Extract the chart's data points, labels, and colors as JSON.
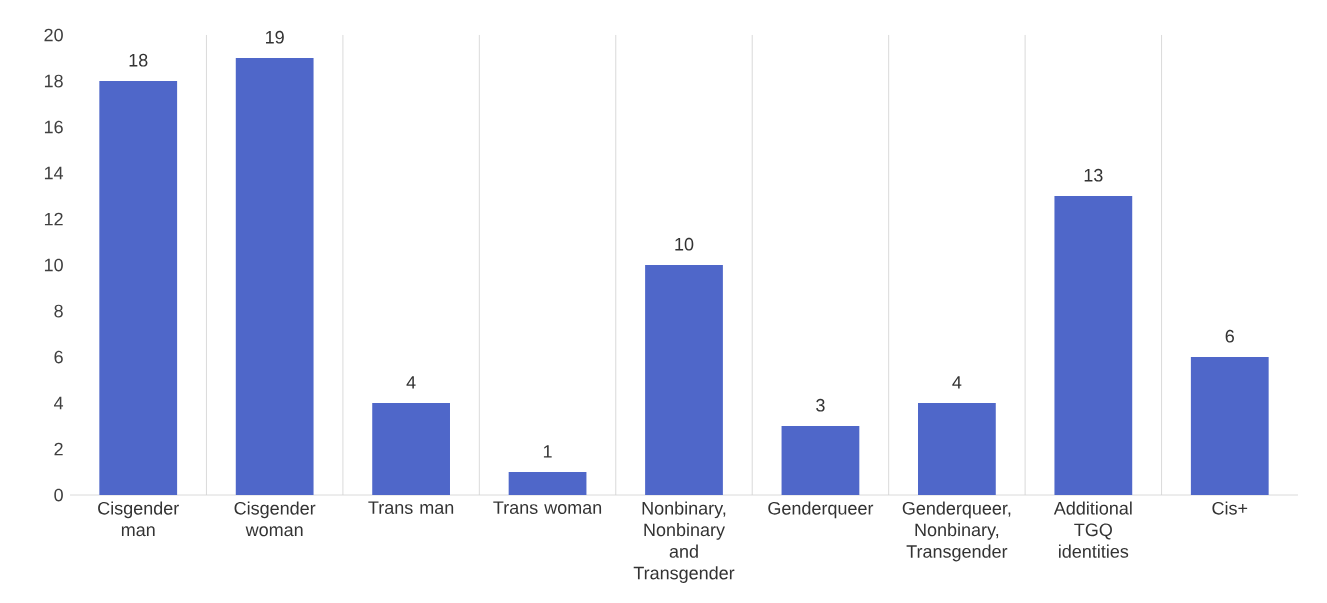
{
  "chart_data": {
    "type": "bar",
    "categories": [
      "Cisgender man",
      "Cisgender woman",
      "Trans man",
      "Trans woman",
      "Nonbinary, Nonbinary and Transgender",
      "Genderqueer",
      "Genderqueer, Nonbinary, Transgender",
      "Additional TGQ identities",
      "Cis+"
    ],
    "values": [
      18,
      19,
      4,
      1,
      10,
      3,
      4,
      13,
      6
    ],
    "color": "#4f67c9",
    "ylim": [
      0,
      20
    ],
    "yticks": [
      0,
      2,
      4,
      6,
      8,
      10,
      12,
      14,
      16,
      18,
      20
    ],
    "grid": "x",
    "data_labels": true
  }
}
